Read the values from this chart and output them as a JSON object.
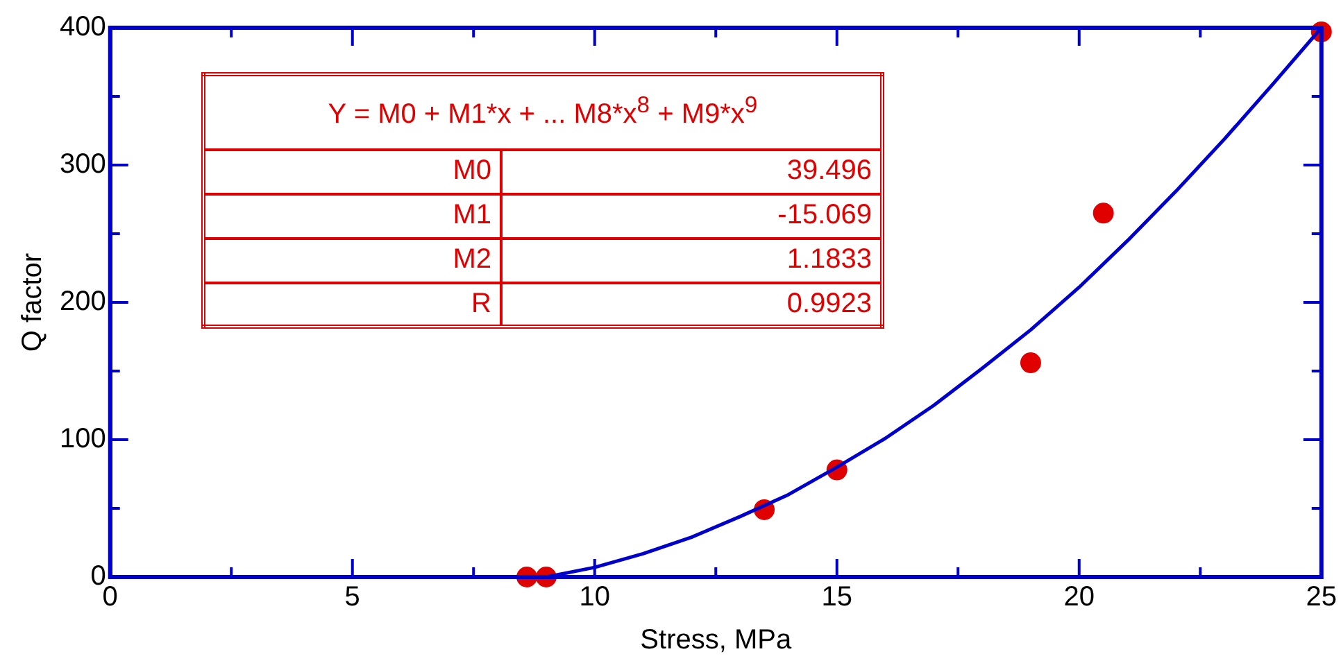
{
  "chart_data": {
    "type": "scatter",
    "xlabel": "Stress, MPa",
    "ylabel": "Q factor",
    "xlim": [
      0,
      25
    ],
    "ylim": [
      0,
      400
    ],
    "xticks": [
      0,
      {
        "value": 2.5,
        "label": null
      },
      5,
      {
        "value": 7.5,
        "label": null
      },
      10,
      {
        "value": 12.5,
        "label": null
      },
      15,
      {
        "value": 17.5,
        "label": null
      },
      20,
      {
        "value": 22.5,
        "label": null
      },
      25
    ],
    "yticks": [
      0,
      {
        "value": 50,
        "label": null
      },
      100,
      {
        "value": 150,
        "label": null
      },
      200,
      {
        "value": 250,
        "label": null
      },
      300,
      {
        "value": 350,
        "label": null
      },
      400
    ],
    "grid": false,
    "legend": false,
    "series": [
      {
        "color": "#e00000",
        "marker": "circle",
        "x": [
          8.6,
          9.0,
          13.5,
          15.0,
          19.0,
          20.5,
          25.0
        ],
        "values": [
          0,
          0,
          49,
          78,
          156,
          265,
          397
        ]
      },
      {
        "type": "line",
        "color": "#0000cc",
        "marker": "none",
        "line_style": "solid",
        "x": [
          9,
          10,
          11,
          12,
          13,
          14,
          15,
          16,
          17,
          18,
          19,
          20,
          21,
          22,
          23,
          24,
          25
        ],
        "values": [
          0,
          7,
          17,
          29,
          44,
          60,
          80,
          101,
          125,
          152,
          180,
          211,
          245,
          281,
          319,
          359,
          400
        ]
      }
    ],
    "annotations": [
      "Y = M0 + M1*x + ... M8*x$^{8}$ + M9*x$^{9}$",
      "M0",
      "39.496",
      "M1",
      "-15.069",
      "M2",
      "1.1833",
      "R",
      "0.9923"
    ]
  }
}
